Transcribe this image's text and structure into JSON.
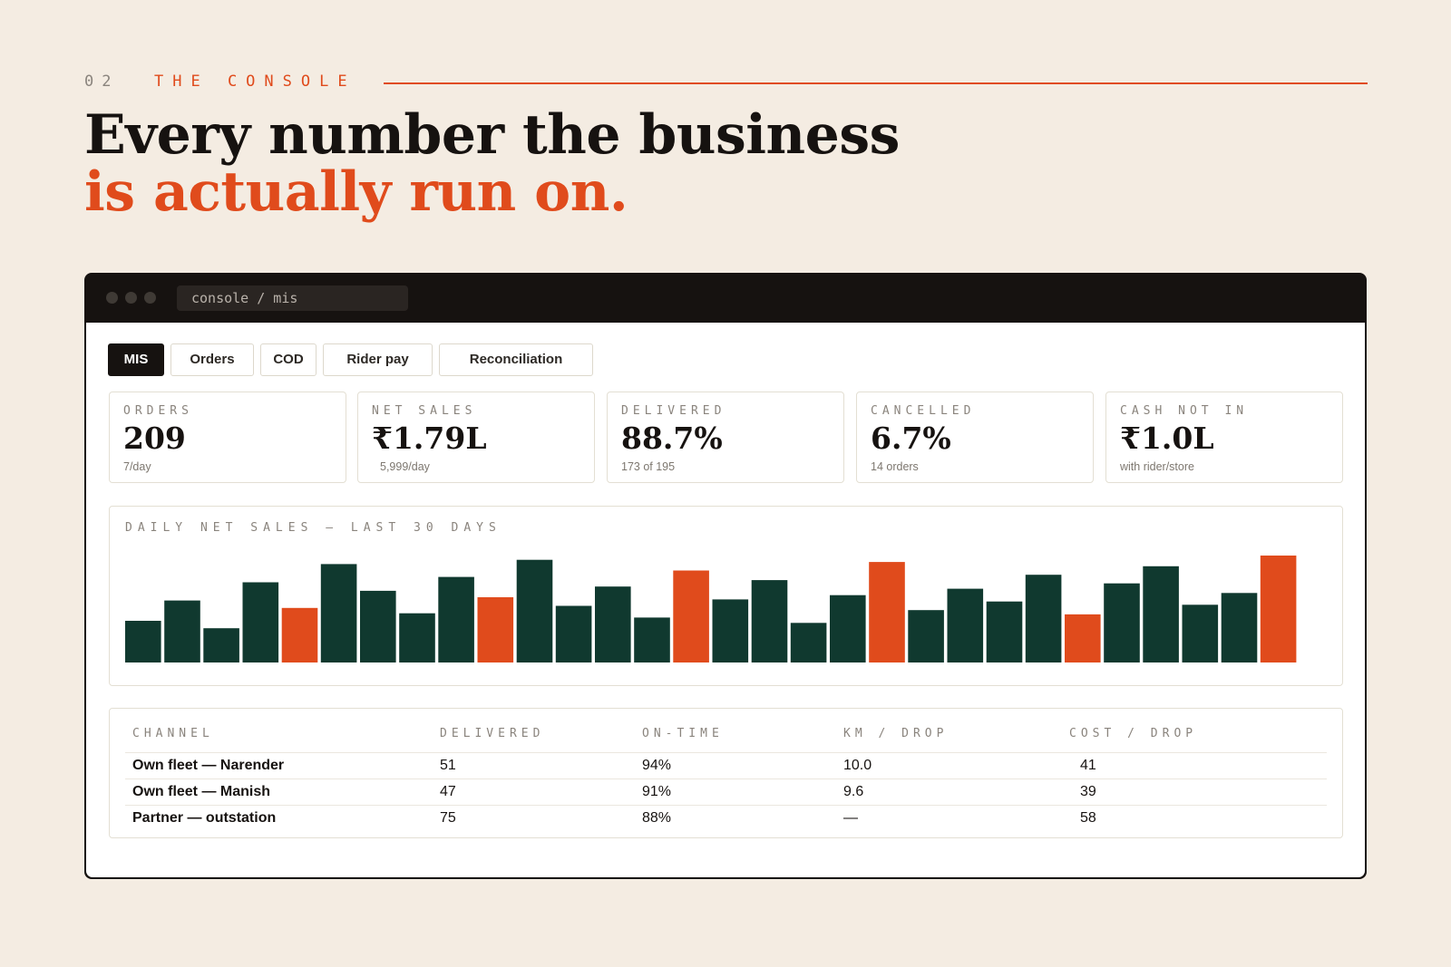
{
  "eyebrow": {
    "number": "02",
    "label": "THE CONSOLE"
  },
  "headline": {
    "line1": "Every number the business",
    "line2": "is actually run on."
  },
  "colors": {
    "accent": "#e04b1c",
    "bar_primary": "#10392f",
    "background": "#f4ece2",
    "ink": "#161210"
  },
  "window": {
    "url": "console / mis"
  },
  "tabs": [
    {
      "label": "MIS",
      "active": true
    },
    {
      "label": "Orders",
      "active": false
    },
    {
      "label": "COD",
      "active": false
    },
    {
      "label": "Rider pay",
      "active": false
    },
    {
      "label": "Reconciliation",
      "active": false
    }
  ],
  "kpis": [
    {
      "label": "ORDERS",
      "value": "209",
      "sub": "7/day"
    },
    {
      "label": "NET SALES",
      "value": "₹1.79L",
      "sub": "5,999/day"
    },
    {
      "label": "DELIVERED",
      "value": "88.7%",
      "sub": "173 of 195"
    },
    {
      "label": "CANCELLED",
      "value": "6.7%",
      "sub": "14 orders"
    },
    {
      "label": "CASH NOT IN",
      "value": "₹1.0L",
      "sub": "with rider/store"
    }
  ],
  "chart_data": {
    "type": "bar",
    "title": "DAILY NET SALES — LAST 30 DAYS",
    "xlabel": "",
    "ylabel": "",
    "grid": false,
    "ylim": [
      0,
      1
    ],
    "values": [
      0.39,
      0.58,
      0.32,
      0.75,
      0.51,
      0.92,
      0.67,
      0.46,
      0.8,
      0.61,
      0.96,
      0.53,
      0.71,
      0.42,
      0.86,
      0.59,
      0.77,
      0.37,
      0.63,
      0.94,
      0.49,
      0.69,
      0.57,
      0.82,
      0.45,
      0.74,
      0.9,
      0.54,
      0.65,
      1.0
    ],
    "highlighted": [
      false,
      false,
      false,
      false,
      true,
      false,
      false,
      false,
      false,
      true,
      false,
      false,
      false,
      false,
      true,
      false,
      false,
      false,
      false,
      true,
      false,
      false,
      false,
      false,
      true,
      false,
      false,
      false,
      false,
      true
    ]
  },
  "table": {
    "columns": [
      "CHANNEL",
      "DELIVERED",
      "ON-TIME",
      "KM / DROP",
      "COST / DROP"
    ],
    "rows": [
      {
        "channel": "Own fleet — Narender",
        "delivered": "51",
        "on_time": "94%",
        "km_drop": "10.0",
        "cost_drop": "41"
      },
      {
        "channel": "Own fleet — Manish",
        "delivered": "47",
        "on_time": "91%",
        "km_drop": "9.6",
        "cost_drop": "39"
      },
      {
        "channel": "Partner — outstation",
        "delivered": "75",
        "on_time": "88%",
        "km_drop": "—",
        "cost_drop": "58"
      }
    ]
  }
}
